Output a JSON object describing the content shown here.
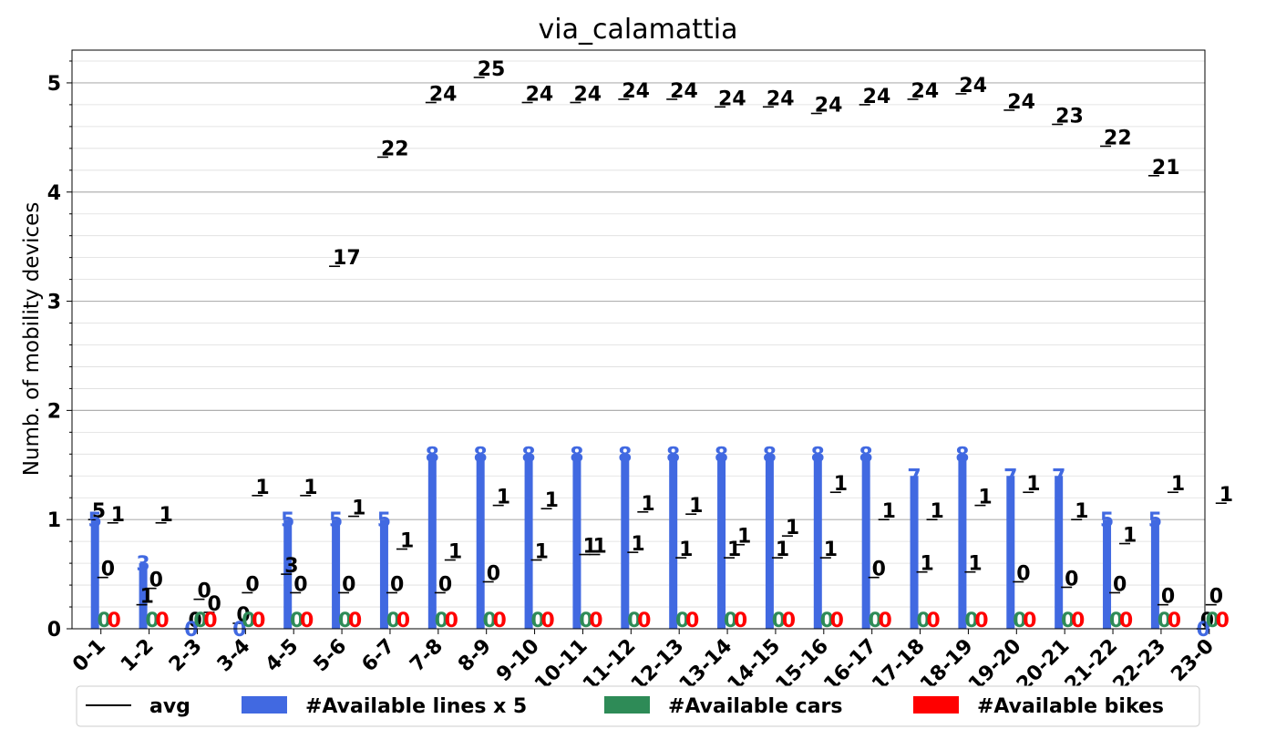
{
  "chart_data": {
    "type": "bar",
    "title": "via_calamattia",
    "ylabel": "Numb. of mobility devices",
    "xlabel": "",
    "ylim": [
      0,
      5.3
    ],
    "yticks": [
      "0",
      "1",
      "2",
      "3",
      "4",
      "5"
    ],
    "grid": true,
    "legend_position": "bottom",
    "categories": [
      "0-1",
      "1-2",
      "2-3",
      "3-4",
      "4-5",
      "5-6",
      "6-7",
      "7-8",
      "8-9",
      "9-10",
      "10-11",
      "11-12",
      "12-13",
      "13-14",
      "14-15",
      "15-16",
      "16-17",
      "17-18",
      "18-19",
      "19-20",
      "20-21",
      "21-22",
      "22-23",
      "23-0"
    ],
    "series": [
      {
        "name": "#Available lines x 5",
        "color": "#4169e1",
        "values": [
          1.0,
          0.6,
          0,
          0,
          1.0,
          1.0,
          1.0,
          1.6,
          1.6,
          1.6,
          1.6,
          1.6,
          1.6,
          1.6,
          1.6,
          1.6,
          1.6,
          1.4,
          1.6,
          1.4,
          1.4,
          1.0,
          1.0,
          0
        ],
        "labels": [
          "5",
          "3",
          "0",
          "0",
          "5",
          "5",
          "5",
          "8",
          "8",
          "8",
          "8",
          "8",
          "8",
          "8",
          "8",
          "8",
          "8",
          "7",
          "8",
          "7",
          "7",
          "5",
          "5",
          "0"
        ]
      },
      {
        "name": "#Available cars",
        "color": "#2e8b57",
        "values": [
          0,
          0,
          0,
          0,
          0,
          0,
          0,
          0,
          0,
          0,
          0,
          0,
          0,
          0,
          0,
          0,
          0,
          0,
          0,
          0,
          0,
          0,
          0,
          0
        ],
        "labels": [
          "0",
          "0",
          "0",
          "0",
          "0",
          "0",
          "0",
          "0",
          "0",
          "0",
          "0",
          "0",
          "0",
          "0",
          "0",
          "0",
          "0",
          "0",
          "0",
          "0",
          "0",
          "0",
          "0",
          "0"
        ]
      },
      {
        "name": "#Available bikes",
        "color": "#ff0000",
        "values": [
          0,
          0,
          0,
          0,
          0,
          0,
          0,
          0,
          0,
          0,
          0,
          0,
          0,
          0,
          0,
          0,
          0,
          0,
          0,
          0,
          0,
          0,
          0,
          0
        ],
        "labels": [
          "0",
          "0",
          "0",
          "0",
          "0",
          "0",
          "0",
          "0",
          "0",
          "0",
          "0",
          "0",
          "0",
          "0",
          "0",
          "0",
          "0",
          "0",
          "0",
          "0",
          "0",
          "0",
          "0",
          "0"
        ]
      }
    ],
    "avg": {
      "name": "avg",
      "color": "#000000",
      "lines": [
        1.0,
        0.22,
        0,
        0.05,
        0.5,
        3.32,
        4.32,
        4.82,
        5.05,
        4.82,
        4.82,
        4.85,
        4.85,
        4.78,
        4.78,
        4.72,
        4.8,
        4.85,
        4.9,
        4.75,
        4.62,
        4.42,
        4.15,
        0
      ],
      "lines_labels": [
        "5",
        "1",
        "0",
        "0",
        "3",
        "17",
        "22",
        "24",
        "25",
        "24",
        "24",
        "24",
        "24",
        "24",
        "24",
        "24",
        "24",
        "24",
        "24",
        "24",
        "23",
        "22",
        "21",
        "0"
      ],
      "cars": [
        0.47,
        0.37,
        0.27,
        0.33,
        0.33,
        0.33,
        0.33,
        0.33,
        0.43,
        0.63,
        0.68,
        0.7,
        0.65,
        0.65,
        0.65,
        0.65,
        0.47,
        0.52,
        0.52,
        0.43,
        0.38,
        0.33,
        0.22,
        0.22
      ],
      "cars_labels": [
        "0",
        "0",
        "0",
        "0",
        "0",
        "0",
        "0",
        "0",
        "0",
        "1",
        "1",
        "1",
        "1",
        "1",
        "1",
        "1",
        "0",
        "1",
        "1",
        "0",
        "0",
        "0",
        "0",
        "0"
      ],
      "bikes": [
        0.97,
        0.97,
        0.15,
        1.22,
        1.22,
        1.03,
        0.73,
        0.63,
        1.13,
        1.1,
        0.68,
        1.07,
        1.05,
        0.77,
        0.85,
        1.25,
        1.0,
        1.0,
        1.13,
        1.25,
        1.0,
        0.78,
        1.25,
        1.15
      ],
      "bikes_labels": [
        "1",
        "1",
        "0",
        "1",
        "1",
        "1",
        "1",
        "1",
        "1",
        "1",
        "1",
        "1",
        "1",
        "1",
        "1",
        "1",
        "1",
        "1",
        "1",
        "1",
        "1",
        "1",
        "1",
        "1"
      ]
    }
  }
}
